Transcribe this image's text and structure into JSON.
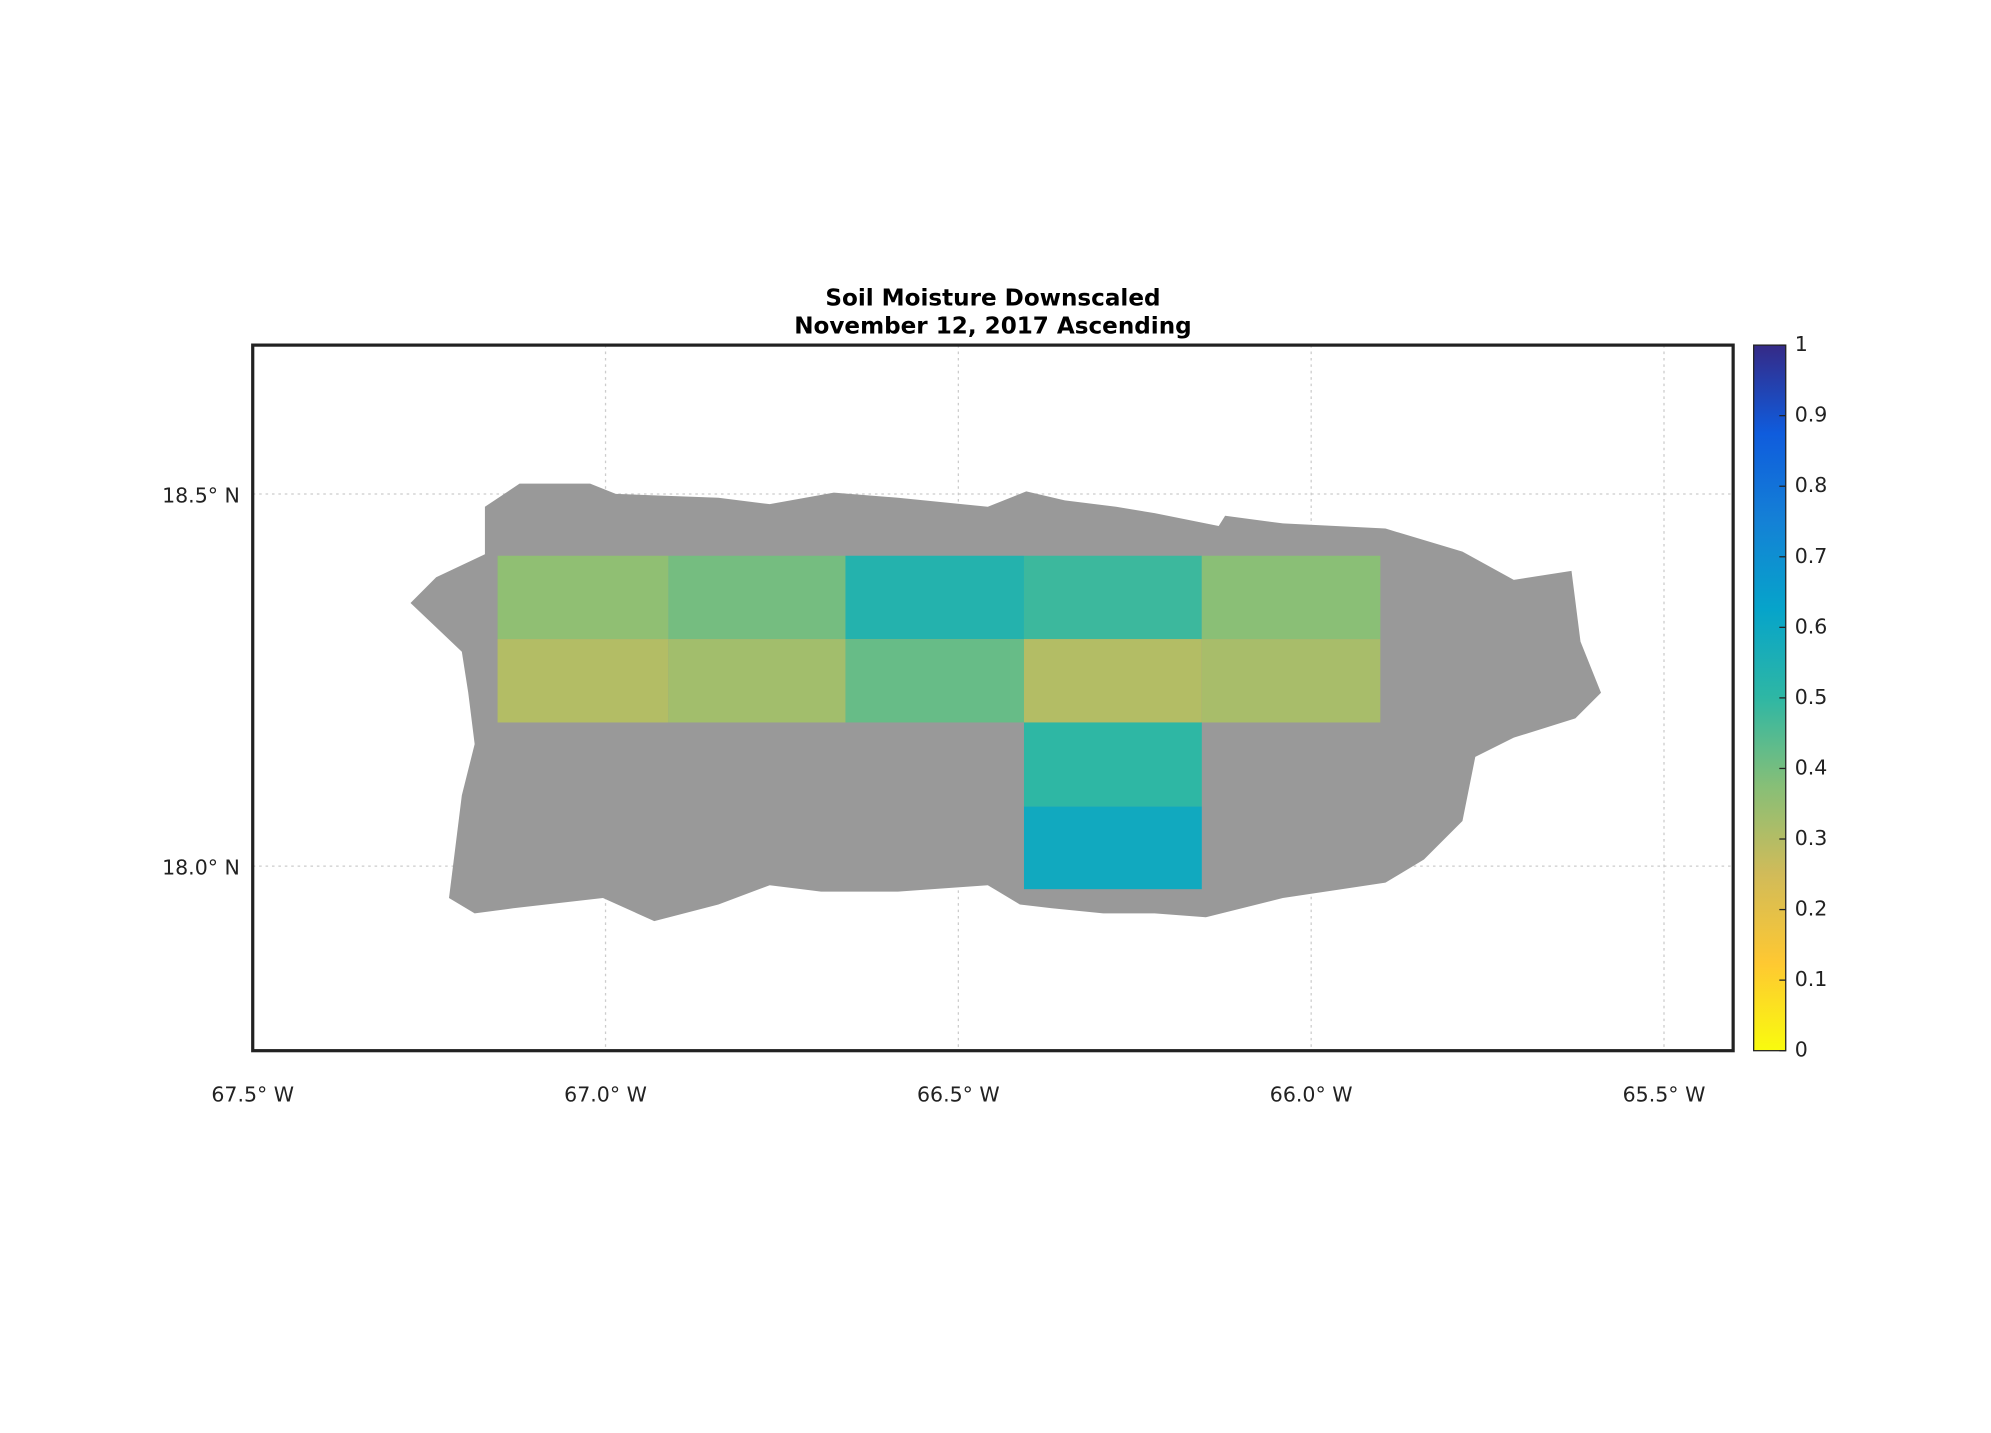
{
  "chart_data": {
    "type": "map",
    "title": "Soil Moisture Downscaled",
    "subtitle": "November 12, 2017 Ascending",
    "xlim": [
      -67.5,
      -65.402
    ],
    "ylim": [
      17.752,
      18.7
    ],
    "xticks": [
      {
        "value": -67.5,
        "label": "67.5° W"
      },
      {
        "value": -67.0,
        "label": "67.0° W"
      },
      {
        "value": -66.5,
        "label": "66.5° W"
      },
      {
        "value": -66.0,
        "label": "66.0° W"
      },
      {
        "value": -65.5,
        "label": "65.5° W"
      }
    ],
    "yticks": [
      {
        "value": 18.0,
        "label": "18.0° N"
      },
      {
        "value": 18.5,
        "label": "18.5° N"
      }
    ],
    "grid": true,
    "colorbar": {
      "lim": [
        0,
        1
      ],
      "ticks": [
        0,
        0.1,
        0.2,
        0.3,
        0.4,
        0.5,
        0.6,
        0.7,
        0.8,
        0.9,
        1
      ],
      "colormap": [
        "#f9fb0e",
        "#fec832",
        "#d1bb59",
        "#87bf77",
        "#2eb7a4",
        "#06a4ca",
        "#1481d6",
        "#0f5cdd",
        "#352a87"
      ]
    },
    "land_color": "#999999",
    "tiles": [
      {
        "lon": [
          -67.153,
          -66.911
        ],
        "lat": [
          18.305,
          18.417
        ],
        "value": 0.36
      },
      {
        "lon": [
          -67.153,
          -66.911
        ],
        "lat": [
          18.193,
          18.305
        ],
        "value": 0.3
      },
      {
        "lon": [
          -66.911,
          -66.66
        ],
        "lat": [
          18.305,
          18.417
        ],
        "value": 0.4
      },
      {
        "lon": [
          -66.911,
          -66.66
        ],
        "lat": [
          18.193,
          18.305
        ],
        "value": 0.33
      },
      {
        "lon": [
          -66.66,
          -66.407
        ],
        "lat": [
          18.305,
          18.417
        ],
        "value": 0.53
      },
      {
        "lon": [
          -66.66,
          -66.407
        ],
        "lat": [
          18.193,
          18.305
        ],
        "value": 0.42
      },
      {
        "lon": [
          -66.407,
          -66.155
        ],
        "lat": [
          18.305,
          18.417
        ],
        "value": 0.48
      },
      {
        "lon": [
          -66.407,
          -66.155
        ],
        "lat": [
          18.193,
          18.305
        ],
        "value": 0.3
      },
      {
        "lon": [
          -66.155,
          -65.902
        ],
        "lat": [
          18.305,
          18.417
        ],
        "value": 0.37
      },
      {
        "lon": [
          -66.155,
          -65.902
        ],
        "lat": [
          18.193,
          18.305
        ],
        "value": 0.32
      },
      {
        "lon": [
          -66.407,
          -66.155
        ],
        "lat": [
          18.08,
          18.193
        ],
        "value": 0.5
      },
      {
        "lon": [
          -66.407,
          -66.155
        ],
        "lat": [
          17.969,
          18.08
        ],
        "value": 0.59
      }
    ]
  }
}
